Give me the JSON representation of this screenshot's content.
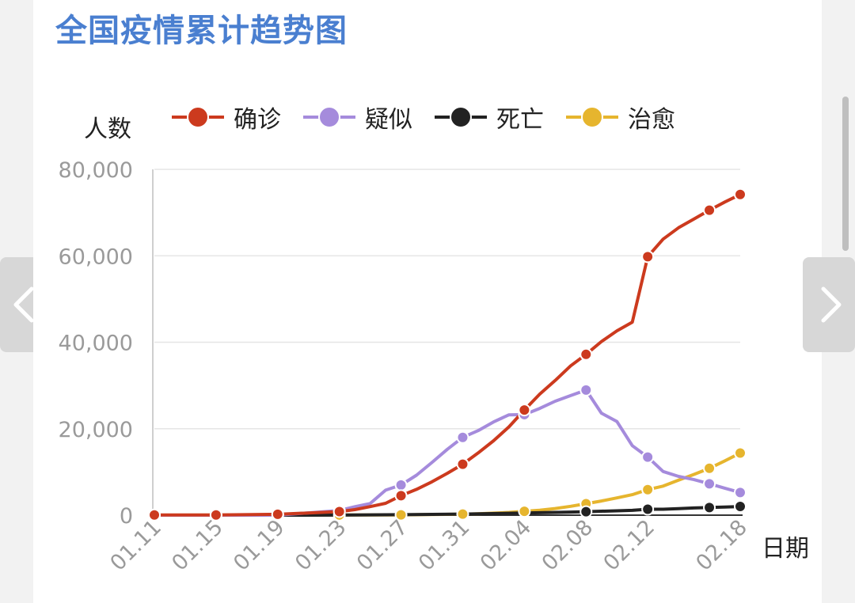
{
  "title": "全国疫情累计趋势图",
  "chart_data": {
    "type": "line",
    "ylabel": "人数",
    "xlabel": "日期",
    "ylim": [
      0,
      80000
    ],
    "yticks": [
      "0",
      "20,000",
      "40,000",
      "60,000",
      "80,000"
    ],
    "ytick_values": [
      0,
      20000,
      40000,
      60000,
      80000
    ],
    "xticks": [
      "01.11",
      "01.15",
      "01.19",
      "01.23",
      "01.27",
      "01.31",
      "02.04",
      "02.08",
      "02.12",
      "02.18"
    ],
    "grid": true,
    "legend_position": "top",
    "series": [
      {
        "name": "确诊",
        "color": "#cc3a1e",
        "points": [
          [
            "01.11",
            41
          ],
          [
            "01.15",
            41
          ],
          [
            "01.19",
            198
          ],
          [
            "01.23",
            830
          ],
          [
            "01.24",
            1287
          ],
          [
            "01.25",
            1975
          ],
          [
            "01.26",
            2744
          ],
          [
            "01.27",
            4515
          ],
          [
            "01.28",
            5974
          ],
          [
            "01.29",
            7711
          ],
          [
            "01.30",
            9692
          ],
          [
            "01.31",
            11791
          ],
          [
            "02.01",
            14380
          ],
          [
            "02.02",
            17205
          ],
          [
            "02.03",
            20438
          ],
          [
            "02.04",
            24324
          ],
          [
            "02.05",
            28018
          ],
          [
            "02.06",
            31161
          ],
          [
            "02.07",
            34546
          ],
          [
            "02.08",
            37198
          ],
          [
            "02.09",
            40171
          ],
          [
            "02.10",
            42638
          ],
          [
            "02.11",
            44653
          ],
          [
            "02.12",
            59804
          ],
          [
            "02.13",
            63851
          ],
          [
            "02.14",
            66492
          ],
          [
            "02.15",
            68500
          ],
          [
            "02.16",
            70548
          ],
          [
            "02.17",
            72436
          ],
          [
            "02.18",
            74185
          ]
        ],
        "markers": [
          "01.11",
          "01.15",
          "01.19",
          "01.23",
          "01.27",
          "01.31",
          "02.04",
          "02.08",
          "02.12",
          "02.16",
          "02.18"
        ]
      },
      {
        "name": "疑似",
        "color": "#a58bdc",
        "points": [
          [
            "01.11",
            0
          ],
          [
            "01.15",
            0
          ],
          [
            "01.19",
            0
          ],
          [
            "01.23",
            1072
          ],
          [
            "01.24",
            1965
          ],
          [
            "01.25",
            2684
          ],
          [
            "01.26",
            5794
          ],
          [
            "01.27",
            6973
          ],
          [
            "01.28",
            9239
          ],
          [
            "01.29",
            12167
          ],
          [
            "01.30",
            15238
          ],
          [
            "01.31",
            17988
          ],
          [
            "02.01",
            19544
          ],
          [
            "02.02",
            21558
          ],
          [
            "02.03",
            23214
          ],
          [
            "02.04",
            23260
          ],
          [
            "02.05",
            24702
          ],
          [
            "02.06",
            26359
          ],
          [
            "02.07",
            27657
          ],
          [
            "02.08",
            28942
          ],
          [
            "02.09",
            23589
          ],
          [
            "02.10",
            21675
          ],
          [
            "02.11",
            16067
          ],
          [
            "02.12",
            13435
          ],
          [
            "02.13",
            10109
          ],
          [
            "02.14",
            8969
          ],
          [
            "02.15",
            8228
          ],
          [
            "02.16",
            7264
          ],
          [
            "02.17",
            6242
          ],
          [
            "02.18",
            5248
          ]
        ],
        "markers": [
          "01.23",
          "01.27",
          "01.31",
          "02.04",
          "02.08",
          "02.12",
          "02.16",
          "02.18"
        ]
      },
      {
        "name": "死亡",
        "color": "#222222",
        "points": [
          [
            "01.11",
            1
          ],
          [
            "01.15",
            2
          ],
          [
            "01.19",
            3
          ],
          [
            "01.23",
            25
          ],
          [
            "01.27",
            106
          ],
          [
            "01.31",
            259
          ],
          [
            "02.04",
            490
          ],
          [
            "02.05",
            563
          ],
          [
            "02.06",
            636
          ],
          [
            "02.07",
            722
          ],
          [
            "02.08",
            811
          ],
          [
            "02.09",
            908
          ],
          [
            "02.10",
            1016
          ],
          [
            "02.11",
            1113
          ],
          [
            "02.12",
            1367
          ],
          [
            "02.13",
            1380
          ],
          [
            "02.14",
            1523
          ],
          [
            "02.15",
            1665
          ],
          [
            "02.16",
            1770
          ],
          [
            "02.17",
            1868
          ],
          [
            "02.18",
            2004
          ]
        ],
        "markers": [
          "02.08",
          "02.12",
          "02.16",
          "02.18"
        ]
      },
      {
        "name": "治愈",
        "color": "#e6b52e",
        "points": [
          [
            "01.11",
            0
          ],
          [
            "01.15",
            12
          ],
          [
            "01.19",
            25
          ],
          [
            "01.23",
            34
          ],
          [
            "01.27",
            60
          ],
          [
            "01.31",
            243
          ],
          [
            "02.01",
            328
          ],
          [
            "02.02",
            475
          ],
          [
            "02.03",
            632
          ],
          [
            "02.04",
            892
          ],
          [
            "02.05",
            1153
          ],
          [
            "02.06",
            1540
          ],
          [
            "02.07",
            2050
          ],
          [
            "02.08",
            2649
          ],
          [
            "02.09",
            3281
          ],
          [
            "02.10",
            3996
          ],
          [
            "02.11",
            4740
          ],
          [
            "02.12",
            5911
          ],
          [
            "02.13",
            6723
          ],
          [
            "02.14",
            8096
          ],
          [
            "02.15",
            9419
          ],
          [
            "02.16",
            10844
          ],
          [
            "02.17",
            12552
          ],
          [
            "02.18",
            14376
          ]
        ],
        "markers": [
          "01.11",
          "01.15",
          "01.19",
          "01.23",
          "01.27",
          "01.31",
          "02.04",
          "02.08",
          "02.12",
          "02.16",
          "02.18"
        ]
      }
    ]
  },
  "nav": {
    "prev_icon": "chevron-left-icon",
    "next_icon": "chevron-right-icon"
  }
}
